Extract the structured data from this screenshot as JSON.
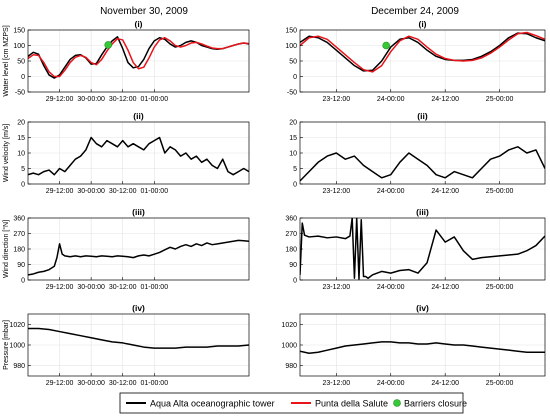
{
  "columns": [
    {
      "title": "November 30, 2009"
    },
    {
      "title": "December 24, 2009"
    }
  ],
  "legend": [
    {
      "label": "Aqua Alta oceanographic tower",
      "color": "#000000",
      "kind": "line"
    },
    {
      "label": "Punta della Salute",
      "color": "#e8141a",
      "kind": "line"
    },
    {
      "label": "Barriers closure",
      "color": "#37c837",
      "kind": "dot"
    }
  ],
  "chart_data": [
    {
      "type": "line",
      "column": 0,
      "row": 0,
      "title": "(i)",
      "ylabel": "Water level [cm MZPS]",
      "xlim": [
        0,
        84
      ],
      "ylim": [
        -50,
        150
      ],
      "yticks": [
        -50,
        0,
        50,
        100,
        150
      ],
      "xticks": [
        12,
        24,
        36,
        48
      ],
      "xtick_labels": [
        "29-12:00",
        "30-00:00",
        "30-12:00",
        "01-00:00"
      ],
      "series": [
        {
          "name": "Aqua Alta oceanographic tower",
          "color": "#000000",
          "x": [
            0,
            2,
            4,
            6,
            8,
            10,
            12,
            14,
            16,
            18,
            20,
            22,
            24,
            26,
            28,
            30,
            32,
            34,
            36,
            38,
            40,
            42,
            44,
            46,
            48,
            50,
            52,
            54,
            56,
            58,
            60,
            62,
            64,
            66,
            68,
            70,
            72,
            74,
            76,
            78,
            80,
            82,
            84
          ],
          "y": [
            65,
            78,
            72,
            35,
            5,
            -5,
            5,
            30,
            55,
            68,
            70,
            60,
            40,
            42,
            70,
            95,
            115,
            128,
            90,
            45,
            28,
            32,
            55,
            90,
            115,
            125,
            120,
            105,
            95,
            100,
            110,
            115,
            110,
            100,
            95,
            90,
            88,
            90,
            95,
            100,
            105,
            108,
            105
          ]
        },
        {
          "name": "Punta della Salute",
          "color": "#e8141a",
          "x": [
            0,
            2,
            4,
            6,
            8,
            10,
            12,
            14,
            16,
            18,
            20,
            22,
            24,
            26,
            28,
            30,
            32,
            34,
            36,
            38,
            40,
            42,
            44,
            46,
            48,
            50,
            52,
            54,
            56,
            58,
            60,
            62,
            64,
            66,
            68,
            70,
            72,
            74,
            76,
            78,
            80,
            82,
            84
          ],
          "y": [
            58,
            70,
            68,
            45,
            15,
            0,
            0,
            20,
            45,
            62,
            68,
            62,
            45,
            38,
            55,
            82,
            105,
            122,
            118,
            85,
            45,
            25,
            30,
            60,
            95,
            118,
            125,
            115,
            100,
            95,
            100,
            108,
            110,
            105,
            98,
            92,
            90,
            90,
            95,
            100,
            105,
            108,
            106
          ]
        }
      ],
      "markers": [
        {
          "x": 30.5,
          "y": 102
        }
      ]
    },
    {
      "type": "line",
      "column": 1,
      "row": 0,
      "title": "(i)",
      "ylabel": "",
      "xlim": [
        0,
        54
      ],
      "ylim": [
        -50,
        150
      ],
      "yticks": [
        -50,
        0,
        50,
        100,
        150
      ],
      "xticks": [
        8,
        20,
        32,
        44
      ],
      "xtick_labels": [
        "23-12:00",
        "24-00:00",
        "24-12:00",
        "25-00:00"
      ],
      "series": [
        {
          "name": "Aqua Alta oceanographic tower",
          "color": "#000000",
          "x": [
            0,
            2,
            4,
            6,
            8,
            10,
            12,
            14,
            16,
            18,
            20,
            22,
            24,
            26,
            28,
            30,
            32,
            34,
            36,
            38,
            40,
            42,
            44,
            46,
            48,
            50,
            52,
            54
          ],
          "y": [
            110,
            130,
            125,
            110,
            85,
            60,
            35,
            18,
            20,
            50,
            95,
            120,
            125,
            110,
            85,
            65,
            55,
            52,
            52,
            55,
            65,
            80,
            100,
            125,
            140,
            138,
            125,
            115
          ]
        },
        {
          "name": "Punta della Salute",
          "color": "#e8141a",
          "x": [
            0,
            2,
            4,
            6,
            8,
            10,
            12,
            14,
            16,
            18,
            20,
            22,
            24,
            26,
            28,
            30,
            32,
            34,
            36,
            38,
            40,
            42,
            44,
            46,
            48,
            50,
            52,
            54
          ],
          "y": [
            100,
            125,
            130,
            120,
            95,
            70,
            45,
            22,
            15,
            35,
            80,
            115,
            130,
            120,
            95,
            72,
            58,
            52,
            50,
            52,
            60,
            75,
            95,
            118,
            138,
            142,
            132,
            120
          ]
        }
      ],
      "markers": [
        {
          "x": 19,
          "y": 100
        }
      ]
    },
    {
      "type": "line",
      "column": 0,
      "row": 1,
      "title": "(ii)",
      "ylabel": "Wind velocity [m/s]",
      "xlim": [
        0,
        84
      ],
      "ylim": [
        0,
        20
      ],
      "yticks": [
        0,
        5,
        10,
        15,
        20
      ],
      "xticks": [
        12,
        24,
        36,
        48
      ],
      "xtick_labels": [
        "29-12:00",
        "30-00:00",
        "30-12:00",
        "01-00:00"
      ],
      "series": [
        {
          "name": "Aqua Alta oceanographic tower",
          "color": "#000000",
          "x": [
            0,
            2,
            4,
            6,
            8,
            10,
            12,
            14,
            16,
            18,
            20,
            22,
            24,
            26,
            28,
            30,
            32,
            34,
            36,
            38,
            40,
            42,
            44,
            46,
            48,
            50,
            52,
            54,
            56,
            58,
            60,
            62,
            64,
            66,
            68,
            70,
            72,
            74,
            76,
            78,
            80,
            82,
            84
          ],
          "y": [
            3,
            3.5,
            3,
            4,
            4.5,
            3,
            5,
            4,
            6,
            8,
            9,
            11,
            15,
            13,
            12,
            14,
            13,
            12,
            14,
            12,
            13,
            12,
            11,
            13,
            14,
            15,
            10,
            12,
            11,
            9,
            10,
            8,
            9,
            7,
            8,
            6,
            5,
            8,
            4,
            3,
            4,
            5,
            4
          ]
        }
      ]
    },
    {
      "type": "line",
      "column": 1,
      "row": 1,
      "title": "(ii)",
      "ylabel": "",
      "xlim": [
        0,
        54
      ],
      "ylim": [
        0,
        20
      ],
      "yticks": [
        0,
        5,
        10,
        15,
        20
      ],
      "xticks": [
        8,
        20,
        32,
        44
      ],
      "xtick_labels": [
        "23-12:00",
        "24-00:00",
        "24-12:00",
        "25-00:00"
      ],
      "series": [
        {
          "name": "Aqua Alta oceanographic tower",
          "color": "#000000",
          "x": [
            0,
            2,
            4,
            6,
            8,
            10,
            12,
            14,
            16,
            18,
            20,
            22,
            24,
            26,
            28,
            30,
            32,
            34,
            36,
            38,
            40,
            42,
            44,
            46,
            48,
            50,
            52,
            54
          ],
          "y": [
            1,
            4,
            7,
            9,
            10,
            8,
            9,
            6,
            4,
            2,
            3,
            7,
            10,
            8,
            6,
            3,
            2,
            4,
            3,
            2,
            5,
            8,
            9,
            11,
            12,
            10,
            11,
            5
          ]
        }
      ]
    },
    {
      "type": "line",
      "column": 0,
      "row": 2,
      "title": "(iii)",
      "ylabel": "Wind direction [°N]",
      "xlim": [
        0,
        84
      ],
      "ylim": [
        0,
        360
      ],
      "yticks": [
        0,
        90,
        180,
        270,
        360
      ],
      "xticks": [
        12,
        24,
        36,
        48
      ],
      "xtick_labels": [
        "29-12:00",
        "30-00:00",
        "30-12:00",
        "01-00:00"
      ],
      "series": [
        {
          "name": "Aqua Alta oceanographic tower",
          "color": "#000000",
          "x": [
            0,
            2,
            4,
            6,
            8,
            10,
            11,
            12,
            13,
            14,
            16,
            18,
            20,
            22,
            24,
            26,
            28,
            30,
            32,
            34,
            36,
            38,
            40,
            42,
            44,
            46,
            48,
            50,
            52,
            54,
            56,
            58,
            60,
            62,
            64,
            66,
            68,
            70,
            72,
            74,
            76,
            78,
            80,
            82,
            84
          ],
          "y": [
            30,
            35,
            45,
            50,
            60,
            80,
            130,
            210,
            150,
            140,
            135,
            140,
            135,
            140,
            138,
            135,
            140,
            138,
            135,
            140,
            138,
            135,
            130,
            140,
            145,
            140,
            150,
            160,
            175,
            190,
            180,
            195,
            205,
            195,
            210,
            200,
            215,
            205,
            210,
            215,
            220,
            225,
            230,
            228,
            225
          ]
        }
      ]
    },
    {
      "type": "line",
      "column": 1,
      "row": 2,
      "title": "(iii)",
      "ylabel": "",
      "xlim": [
        0,
        54
      ],
      "ylim": [
        0,
        360
      ],
      "yticks": [
        0,
        90,
        180,
        270,
        360
      ],
      "xticks": [
        8,
        20,
        32,
        44
      ],
      "xtick_labels": [
        "23-12:00",
        "24-00:00",
        "24-12:00",
        "25-00:00"
      ],
      "series": [
        {
          "name": "Aqua Alta oceanographic tower",
          "color": "#000000",
          "x": [
            0,
            0.5,
            1,
            2,
            4,
            6,
            8,
            10,
            11,
            11.5,
            12,
            12.5,
            13,
            13.5,
            14,
            14.5,
            15,
            16,
            18,
            20,
            22,
            24,
            26,
            28,
            30,
            32,
            34,
            36,
            38,
            40,
            42,
            44,
            46,
            48,
            50,
            52,
            54
          ],
          "y": [
            30,
            330,
            260,
            250,
            255,
            245,
            250,
            240,
            255,
            360,
            10,
            360,
            5,
            350,
            20,
            20,
            10,
            30,
            50,
            40,
            55,
            60,
            40,
            100,
            290,
            220,
            250,
            170,
            120,
            130,
            135,
            140,
            145,
            150,
            170,
            200,
            255
          ]
        }
      ]
    },
    {
      "type": "line",
      "column": 0,
      "row": 3,
      "title": "(iv)",
      "ylabel": "Pressure [mbar]",
      "xlim": [
        0,
        84
      ],
      "ylim": [
        970,
        1030
      ],
      "yticks": [
        980,
        1000,
        1020
      ],
      "xticks": [
        12,
        24,
        36,
        48
      ],
      "xtick_labels": [
        "29-12:00",
        "30-00:00",
        "30-12:00",
        "01-00:00"
      ],
      "series": [
        {
          "name": "Aqua Alta oceanographic tower",
          "color": "#000000",
          "x": [
            0,
            4,
            8,
            12,
            16,
            20,
            24,
            28,
            32,
            36,
            40,
            44,
            48,
            52,
            56,
            60,
            64,
            68,
            72,
            76,
            80,
            84
          ],
          "y": [
            1016,
            1016,
            1015,
            1013,
            1011,
            1009,
            1007,
            1005,
            1003,
            1002,
            1000,
            998,
            997,
            997,
            997,
            998,
            998,
            998,
            999,
            999,
            999,
            1000
          ]
        }
      ]
    },
    {
      "type": "line",
      "column": 1,
      "row": 3,
      "title": "(iv)",
      "ylabel": "",
      "xlim": [
        0,
        54
      ],
      "ylim": [
        970,
        1030
      ],
      "yticks": [
        980,
        1000,
        1020
      ],
      "xticks": [
        8,
        20,
        32,
        44
      ],
      "xtick_labels": [
        "23-12:00",
        "24-00:00",
        "24-12:00",
        "25-00:00"
      ],
      "series": [
        {
          "name": "Aqua Alta oceanographic tower",
          "color": "#000000",
          "x": [
            0,
            2,
            4,
            6,
            8,
            10,
            12,
            14,
            16,
            18,
            20,
            22,
            24,
            26,
            28,
            30,
            32,
            34,
            36,
            38,
            40,
            42,
            44,
            46,
            48,
            50,
            52,
            54
          ],
          "y": [
            994,
            992,
            993,
            995,
            997,
            999,
            1000,
            1001,
            1002,
            1003,
            1003,
            1002,
            1002,
            1001,
            1001,
            1002,
            1001,
            1000,
            1000,
            999,
            998,
            997,
            996,
            995,
            994,
            993,
            993,
            993
          ]
        }
      ]
    }
  ]
}
